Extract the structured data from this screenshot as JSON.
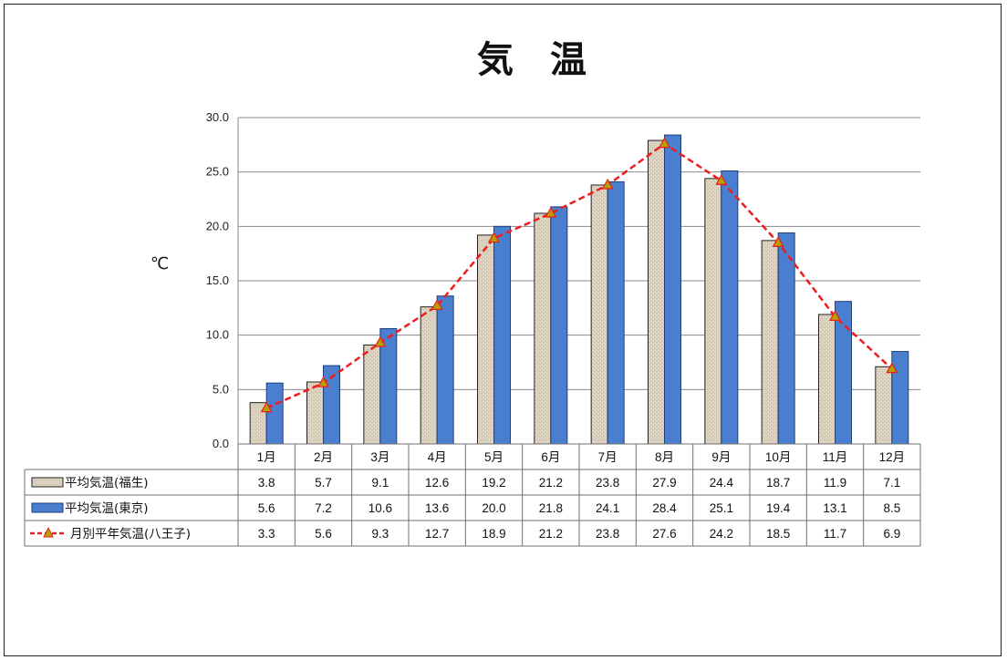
{
  "chart_data": {
    "type": "bar",
    "title": "気　温",
    "ylabel": "℃",
    "xlabel": "",
    "ylim": [
      0,
      30
    ],
    "yticks": [
      "0.0",
      "5.0",
      "10.0",
      "15.0",
      "20.0",
      "25.0",
      "30.0"
    ],
    "grid": true,
    "legend": "data-table-left",
    "categories": [
      "1月",
      "2月",
      "3月",
      "4月",
      "5月",
      "6月",
      "7月",
      "8月",
      "9月",
      "10月",
      "11月",
      "12月"
    ],
    "series": [
      {
        "name": "平均気温(福生)",
        "kind": "bar",
        "color": "#d9cdb8",
        "values": [
          3.8,
          5.7,
          9.1,
          12.6,
          19.2,
          21.2,
          23.8,
          27.9,
          24.4,
          18.7,
          11.9,
          7.1
        ],
        "labels": [
          "3.8",
          "5.7",
          "9.1",
          "12.6",
          "19.2",
          "21.2",
          "23.8",
          "27.9",
          "24.4",
          "18.7",
          "11.9",
          "7.1"
        ]
      },
      {
        "name": "平均気温(東京)",
        "kind": "bar",
        "color": "#4a7fd0",
        "values": [
          5.6,
          7.2,
          10.6,
          13.6,
          20.0,
          21.8,
          24.1,
          28.4,
          25.1,
          19.4,
          13.1,
          8.5
        ],
        "labels": [
          "5.6",
          "7.2",
          "10.6",
          "13.6",
          "20.0",
          "21.8",
          "24.1",
          "28.4",
          "25.1",
          "19.4",
          "13.1",
          "8.5"
        ]
      },
      {
        "name": "月別平年気温(八王子)",
        "kind": "line",
        "color": "#ee1c1c",
        "marker_color": "#b5a000",
        "values": [
          3.3,
          5.6,
          9.3,
          12.7,
          18.9,
          21.2,
          23.8,
          27.6,
          24.2,
          18.5,
          11.7,
          6.9
        ],
        "labels": [
          "3.3",
          "5.6",
          "9.3",
          "12.7",
          "18.9",
          "21.2",
          "23.8",
          "27.6",
          "24.2",
          "18.5",
          "11.7",
          "6.9"
        ]
      }
    ]
  }
}
